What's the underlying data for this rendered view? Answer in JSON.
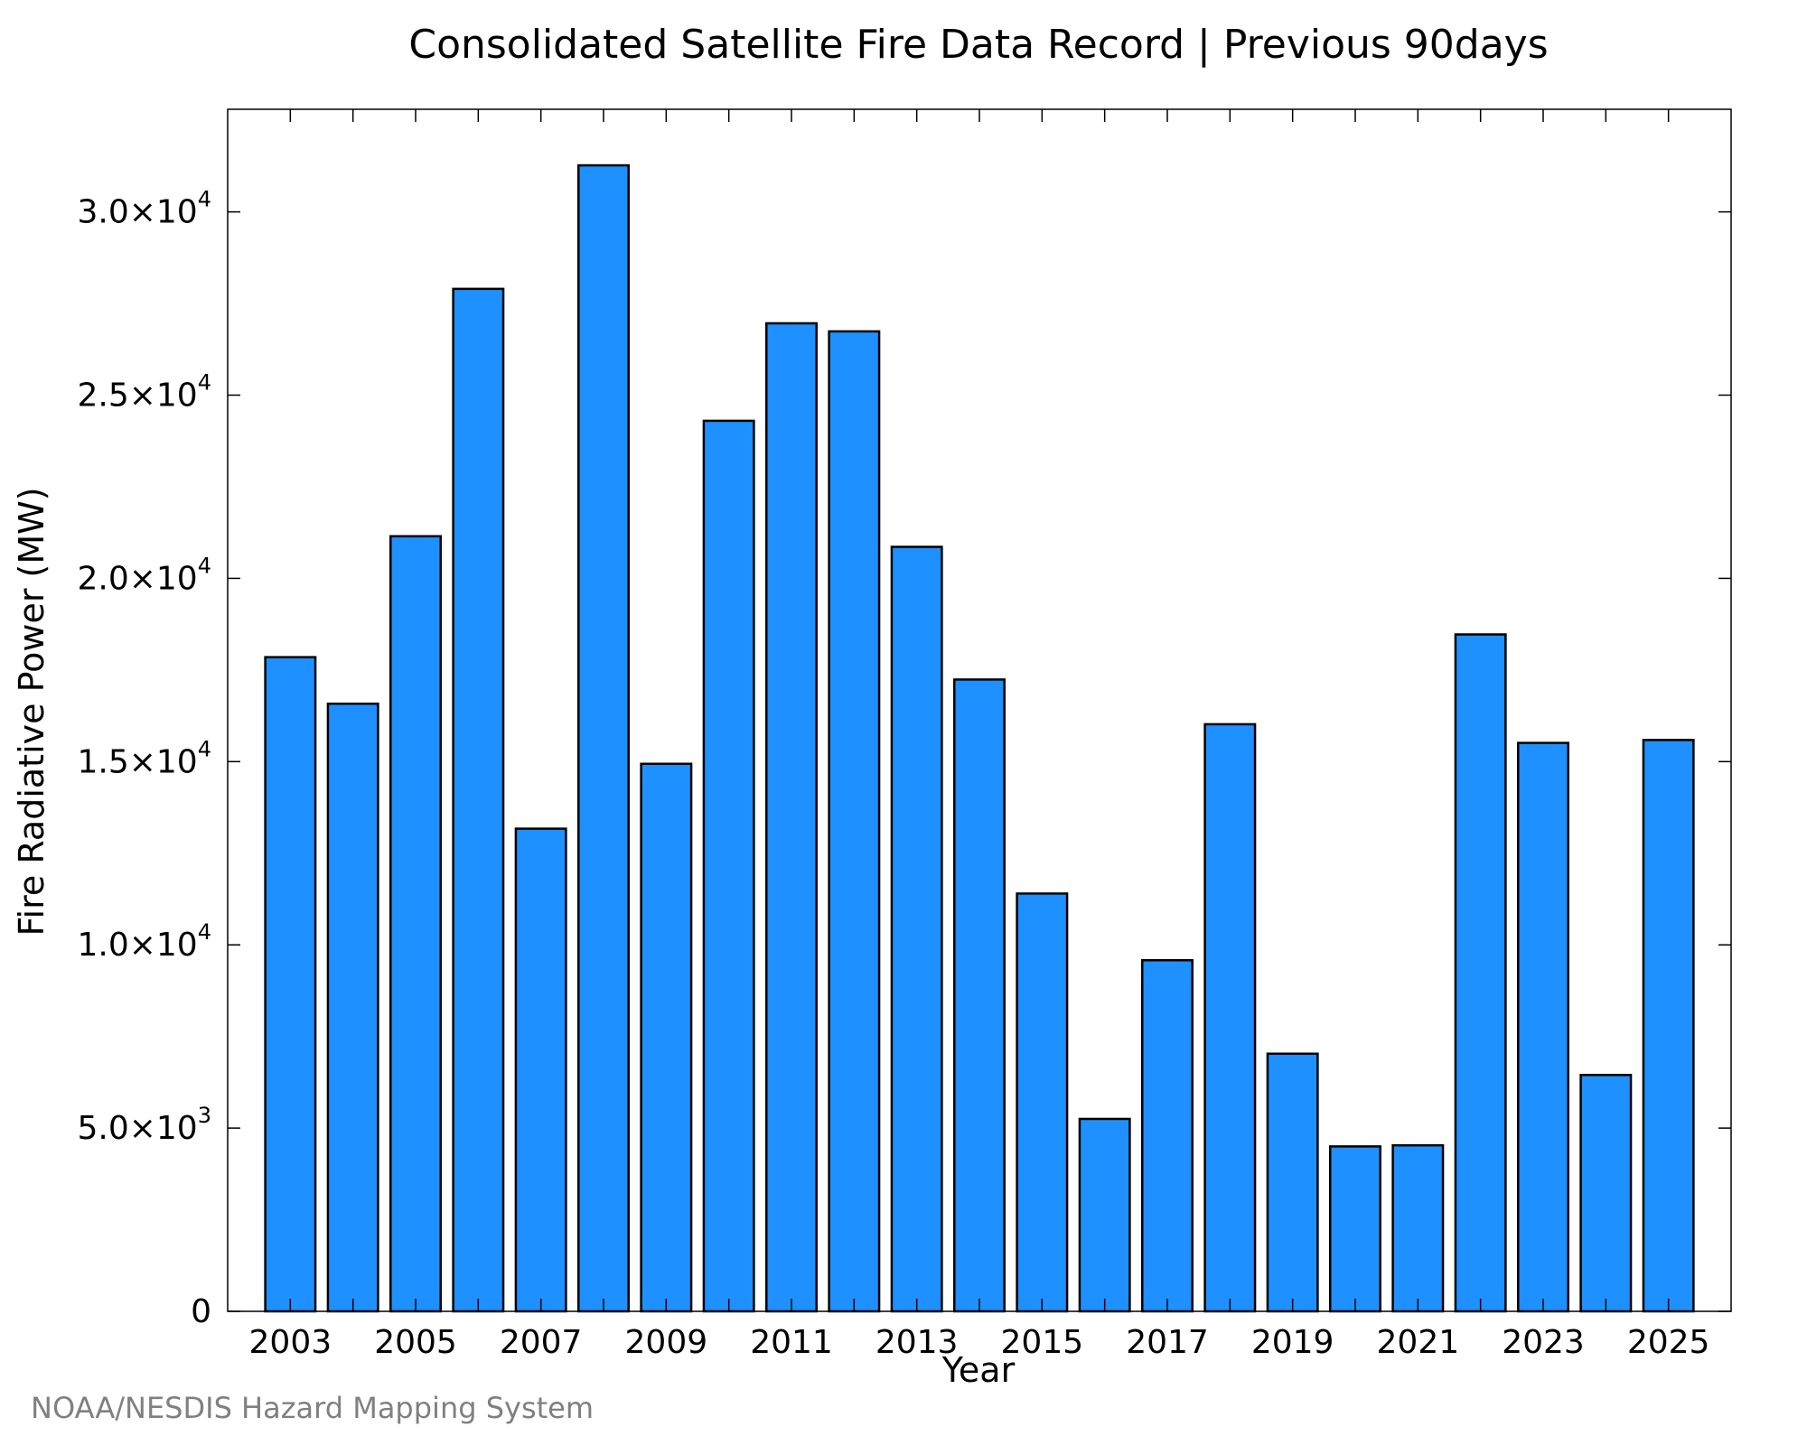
{
  "chart_data": {
    "type": "bar",
    "title": "Consolidated Satellite Fire Data Record | Previous 90days",
    "xlabel": "Year",
    "ylabel": "Fire Radiative Power (MW)",
    "credit": "NOAA/NESDIS Hazard Mapping System",
    "categories": [
      "2003",
      "2004",
      "2005",
      "2006",
      "2007",
      "2008",
      "2009",
      "2010",
      "2011",
      "2012",
      "2013",
      "2014",
      "2015",
      "2016",
      "2017",
      "2018",
      "2019",
      "2020",
      "2021",
      "2022",
      "2023",
      "2024",
      "2025"
    ],
    "values": [
      17850,
      16580,
      21150,
      27900,
      13170,
      31270,
      14940,
      24300,
      26960,
      26740,
      20860,
      17240,
      11400,
      5250,
      9580,
      16020,
      7030,
      4500,
      4530,
      18470,
      15510,
      6450,
      15590
    ],
    "xlim": [
      2002,
      2026
    ],
    "ylim": [
      0,
      32800
    ],
    "x_tick_labels": [
      "2003",
      "2005",
      "2007",
      "2009",
      "2011",
      "2013",
      "2015",
      "2017",
      "2019",
      "2021",
      "2023",
      "2025"
    ],
    "y_ticks": [
      {
        "value": 0,
        "mantissa": "0",
        "exponent": ""
      },
      {
        "value": 5000,
        "mantissa": "5.0×10",
        "exponent": "3"
      },
      {
        "value": 10000,
        "mantissa": "1.0×10",
        "exponent": "4"
      },
      {
        "value": 15000,
        "mantissa": "1.5×10",
        "exponent": "4"
      },
      {
        "value": 20000,
        "mantissa": "2.0×10",
        "exponent": "4"
      },
      {
        "value": 25000,
        "mantissa": "2.5×10",
        "exponent": "4"
      },
      {
        "value": 30000,
        "mantissa": "3.0×10",
        "exponent": "4"
      }
    ],
    "bar_color": "#1E90FF",
    "grid": false,
    "legend": "none"
  }
}
